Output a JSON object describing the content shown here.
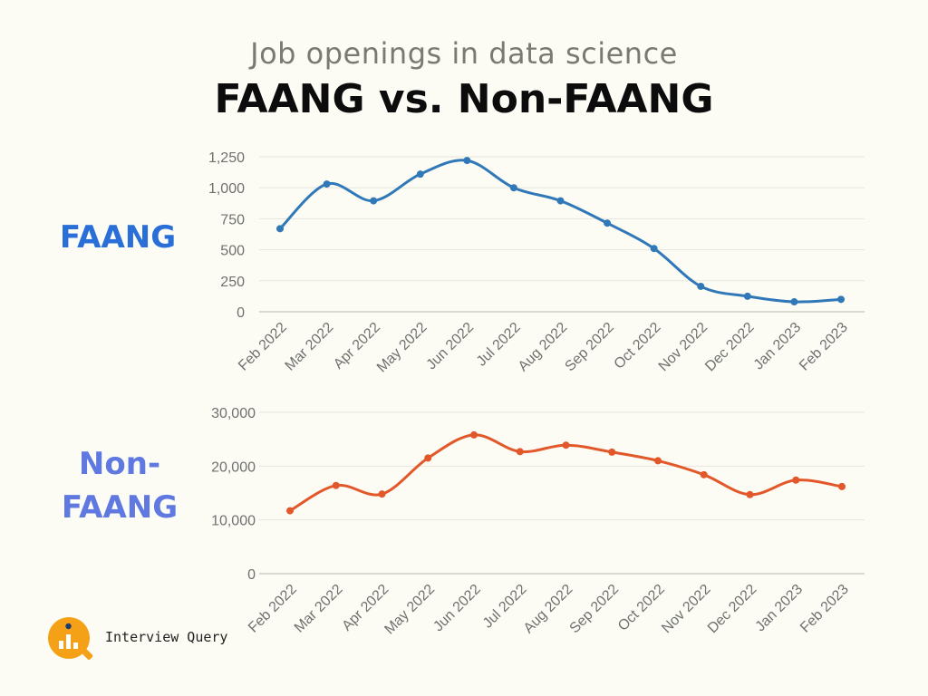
{
  "header": {
    "subtitle": "Job openings in data science",
    "title": "FAANG vs. Non-FAANG"
  },
  "labels": {
    "faang": "FAANG",
    "non_faang_line1": "Non-",
    "non_faang_line2": "FAANG"
  },
  "brand": {
    "name": "Interview Query",
    "logo_icon": "interview-query-logo-icon"
  },
  "colors": {
    "faang": "#3178b8",
    "non_faang": "#e2582a",
    "faang_label": "#2a6fd8",
    "non_faang_label": "#5f79e0"
  },
  "chart_data": [
    {
      "type": "line",
      "name": "FAANG",
      "categories": [
        "Feb 2022",
        "Mar 2022",
        "Apr 2022",
        "May 2022",
        "Jun 2022",
        "Jul 2022",
        "Aug 2022",
        "Sep 2022",
        "Oct 2022",
        "Nov 2022",
        "Dec 2022",
        "Jan 2023",
        "Feb 2023"
      ],
      "values": [
        670,
        1030,
        895,
        1110,
        1220,
        1000,
        895,
        715,
        510,
        205,
        125,
        80,
        100
      ],
      "ylim": [
        0,
        1250
      ],
      "yticks": [
        0,
        250,
        500,
        750,
        1000,
        1250
      ],
      "ytick_labels": [
        "0",
        "250",
        "500",
        "750",
        "1,000",
        "1,250"
      ],
      "grid": true,
      "legend": "none"
    },
    {
      "type": "line",
      "name": "Non-FAANG",
      "categories": [
        "Feb 2022",
        "Mar 2022",
        "Apr 2022",
        "May 2022",
        "Jun 2022",
        "Jul 2022",
        "Aug 2022",
        "Sep 2022",
        "Oct 2022",
        "Nov 2022",
        "Dec 2022",
        "Jan 2023",
        "Feb 2023"
      ],
      "values": [
        11700,
        16400,
        14800,
        21500,
        25800,
        22700,
        23900,
        22600,
        21000,
        18400,
        14700,
        17400,
        16200
      ],
      "ylim": [
        0,
        30000
      ],
      "yticks": [
        0,
        10000,
        20000,
        30000
      ],
      "ytick_labels": [
        "0",
        "10,000",
        "20,000",
        "30,000"
      ],
      "grid": true,
      "legend": "none"
    }
  ]
}
